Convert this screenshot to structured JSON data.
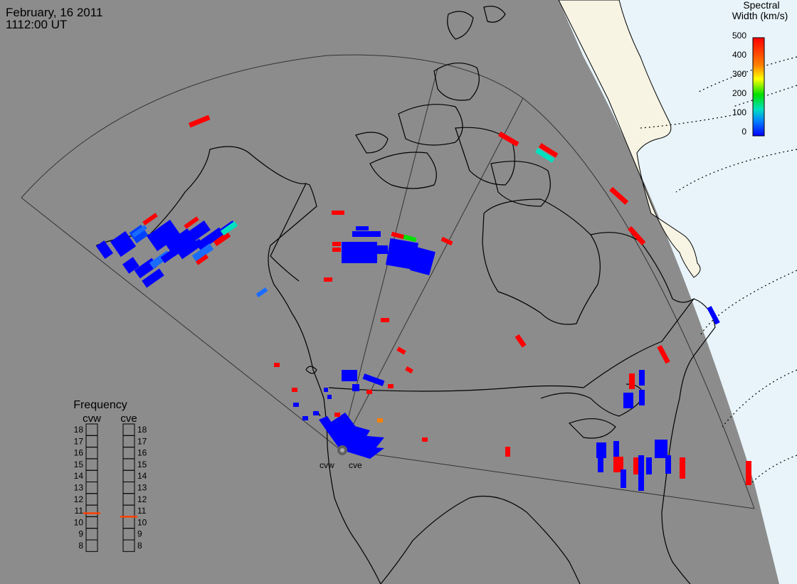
{
  "header": {
    "date": "February, 16 2011",
    "time": "1112:00 UT"
  },
  "colorbar": {
    "title_line1": "Spectral",
    "title_line2": "Width (km/s)",
    "ticks": [
      "500",
      "400",
      "300",
      "200",
      "100",
      "0"
    ],
    "colors": [
      "#ff0000",
      "#ff8000",
      "#ffff00",
      "#00e000",
      "#00e0c0",
      "#0080ff",
      "#0000ff"
    ]
  },
  "frequency_panel": {
    "title": "Frequency",
    "radars": [
      {
        "name": "cvw",
        "frequency_mhz": 10.8
      },
      {
        "name": "cve",
        "frequency_mhz": 10.5
      }
    ],
    "scale": [
      "18",
      "17",
      "16",
      "15",
      "14",
      "13",
      "12",
      "11",
      "10",
      "9",
      "8"
    ]
  },
  "radar_sites": [
    {
      "label": "cvw"
    },
    {
      "label": "cve"
    }
  ],
  "colors": {
    "land": "#8c8c8c",
    "ocean_nightside": "#8c8c8c",
    "dayside_ocean": "#e8f4fa",
    "dayside_land": "#f8f4e4",
    "coastline": "#000000",
    "field_of_view": "#303030",
    "frequency_marker": "#ff4000"
  }
}
